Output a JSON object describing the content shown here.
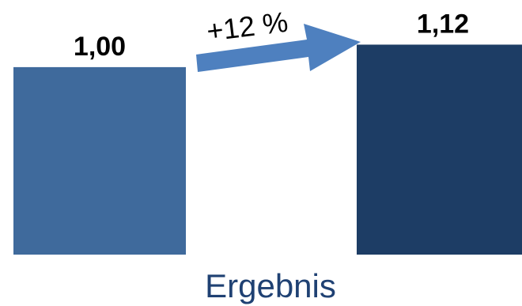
{
  "chart_data": {
    "type": "bar",
    "x_label": "Ergebnis",
    "values": [
      1.0,
      1.12
    ],
    "value_labels": [
      "1,00",
      "1,12"
    ],
    "change_annotation": "+12 %",
    "ylim": [
      0,
      1.24
    ],
    "grid": false,
    "legend": "none",
    "colors": {
      "bar_1": "#3F6A9C",
      "bar_2": "#1D3D65",
      "arrow": "#4E80BF",
      "category_label": "#1F4173"
    }
  }
}
